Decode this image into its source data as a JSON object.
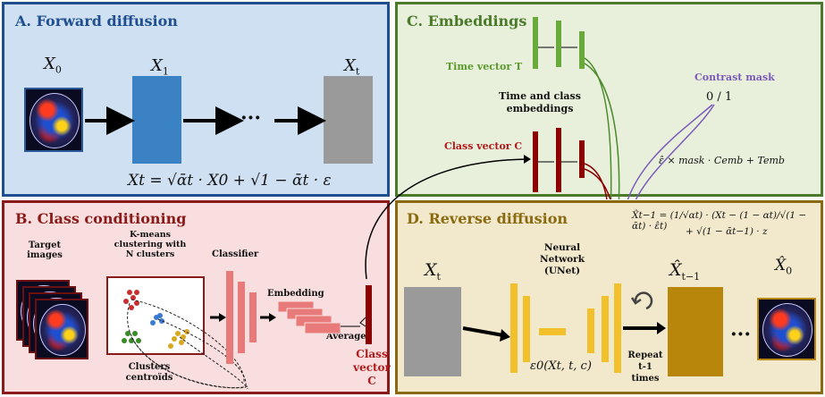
{
  "panels": {
    "forward": {
      "title": "A. Forward diffusion",
      "x0": "X",
      "x0_sub": "0",
      "x1": "X",
      "x1_sub": "1",
      "xt": "X",
      "xt_sub": "t",
      "dots": "···",
      "equation": "Xt = √ᾱt · X0 + √1 − ᾱt · ε"
    },
    "class_cond": {
      "title": "B. Class conditioning",
      "target_images": "Target images",
      "kmeans": "K-means clustering with N clusters",
      "clusters_centroids": "Clusters centroïds",
      "classifier": "Classifier",
      "embedding": "Embedding",
      "average": "Average",
      "class_vector": "Class vector C"
    },
    "embeddings": {
      "title": "C. Embeddings",
      "time_vector": "Time vector T",
      "time_class_emb": "Time and class embeddings",
      "class_vector": "Class vector C",
      "contrast_mask": "Contrast mask",
      "mask_values": "0 / 1",
      "formula": "ε̂ × mask · Cemb + Temb"
    },
    "reverse": {
      "title": "D. Reverse diffusion",
      "xt": "X",
      "xt_sub": "t",
      "network": "Neural Network (UNet)",
      "eps": "ε0(Xt, t, c)",
      "repeat": "Repeat t-1 times",
      "xhat": "X̂",
      "xhat_sub": "t−1",
      "xhat0": "X̂",
      "xhat0_sub": "0",
      "dots": "···",
      "formula_line1": "X̂t−1 = (1/√αt) · (Xt − (1 − αt)/√(1 − ᾱt) · ε̂t)",
      "formula_line2": "+ √(1 − ᾱt−1) · z"
    }
  },
  "colors": {
    "panel_a_bg": "#cfe0f3",
    "panel_a_border": "#1f4f8f",
    "panel_b_bg": "#f8dede",
    "panel_b_border": "#8b1a1a",
    "panel_c_bg": "#e8f0dc",
    "panel_c_border": "#4a7a2a",
    "panel_d_bg": "#f2e8cc",
    "panel_d_border": "#8a6a10",
    "blue_block": "#3b82c4",
    "gray_block": "#9a9a9a",
    "green_bar": "#6aaa3a",
    "dark_red_bar": "#8b0000",
    "salmon": "#e87a7a",
    "yellow": "#f2c02a",
    "gold_block": "#b8860b",
    "purple": "#7a5ab8"
  },
  "icons": [
    "brain-scan-image",
    "refresh-icon",
    "arrow-right-icon"
  ]
}
